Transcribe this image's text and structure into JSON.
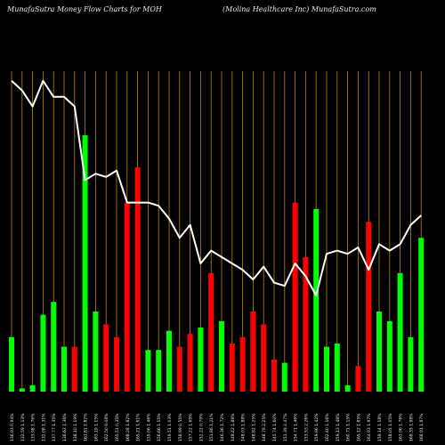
{
  "header": {
    "title": "MunafaSutra  Money Flow  Charts for MOH",
    "subtitle": "(Molina  Healthcare   Inc) MunafaSutra.com"
  },
  "colors": {
    "background": "#000000",
    "up": "#00ff00",
    "down": "#ff0000",
    "line": "#ffffff",
    "grid": "#b8860b"
  },
  "chart_data": {
    "type": "bar",
    "title": "MunafaSutra  Money Flow  Charts for MOH",
    "grid": true,
    "categories": [
      "136.93 0.94%",
      "132.59 1.13%",
      "133.98 1.76%",
      "132.08 1.31%",
      "137.77 1.35%",
      "136.62 1.36%",
      "138.10 1.19%",
      "161.81 1.82%",
      "163.19 1.15%",
      "162.50 0.08%",
      "165.51 0.35%",
      "168.28 1.82%",
      "165.21 1.61%",
      "159.06 1.46%",
      "156.66 1.15%",
      "159.51 1.03%",
      "158.99 0.55%",
      "157.22 1.69%",
      "152.22 0.79%",
      "151.86 1.21%",
      "146.36 1.72%",
      "148.42 1.88%",
      "148.03 1.88%",
      "148.82 1.25%",
      "148.79 2.25%",
      "145.74 1.60%",
      "151.39 2.47%",
      "154.71 1.46%",
      "153.53 2.26%",
      "159.96 1.42%",
      "162.40 1.16%",
      "159.13 1.48%",
      "160.71 1.15%",
      "165.12 1.85%",
      "164.93 1.97%",
      "159.14 1.18%",
      "158.05 1.05%",
      "163.96 1.76%",
      "168.35 1.98%",
      "168.91 1.87%"
    ],
    "values": [
      17,
      1,
      2,
      24,
      28,
      14,
      14,
      80,
      25,
      21,
      17,
      59,
      70,
      13,
      13,
      19,
      14,
      18,
      20,
      37,
      22,
      15,
      17,
      25,
      21,
      10,
      9,
      59,
      42,
      57,
      14,
      15,
      2,
      8,
      53,
      25,
      22,
      37,
      17,
      48
    ],
    "direction": [
      "up",
      "up",
      "up",
      "up",
      "up",
      "up",
      "down",
      "up",
      "up",
      "down",
      "down",
      "down",
      "down",
      "up",
      "up",
      "up",
      "down",
      "down",
      "up",
      "down",
      "up",
      "down",
      "down",
      "down",
      "down",
      "down",
      "up",
      "down",
      "down",
      "up",
      "up",
      "up",
      "up",
      "down",
      "down",
      "up",
      "up",
      "up",
      "up",
      "up"
    ],
    "line": [
      97,
      94,
      89,
      97,
      92,
      92,
      89,
      66,
      68,
      67,
      69,
      59,
      59,
      59,
      58,
      54,
      48,
      52,
      40,
      44,
      42,
      40,
      38,
      35,
      39,
      34,
      33,
      40,
      36,
      30,
      43,
      44,
      43,
      45,
      38,
      46,
      44,
      46,
      52,
      55
    ],
    "ylim": [
      0,
      100
    ]
  }
}
